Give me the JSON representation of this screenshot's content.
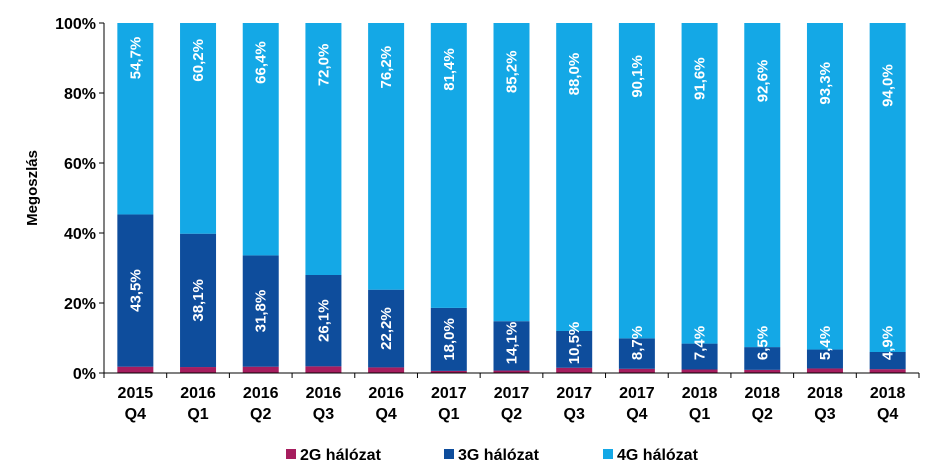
{
  "chart_data": {
    "type": "bar",
    "stacked": true,
    "ylabel": "Megoszlás",
    "ylim": [
      0,
      100
    ],
    "yticks": [
      "0%",
      "20%",
      "40%",
      "60%",
      "80%",
      "100%"
    ],
    "categories": [
      [
        "2015",
        "Q4"
      ],
      [
        "2016",
        "Q1"
      ],
      [
        "2016",
        "Q2"
      ],
      [
        "2016",
        "Q3"
      ],
      [
        "2016",
        "Q4"
      ],
      [
        "2017",
        "Q1"
      ],
      [
        "2017",
        "Q2"
      ],
      [
        "2017",
        "Q3"
      ],
      [
        "2017",
        "Q4"
      ],
      [
        "2018",
        "Q1"
      ],
      [
        "2018",
        "Q2"
      ],
      [
        "2018",
        "Q3"
      ],
      [
        "2018",
        "Q4"
      ]
    ],
    "series": [
      {
        "name": "2G hálózat",
        "color": "#A61D5E",
        "values": [
          1.8,
          1.7,
          1.8,
          1.9,
          1.6,
          0.6,
          0.7,
          1.5,
          1.2,
          1.0,
          0.9,
          1.3,
          1.1
        ]
      },
      {
        "name": "3G hálózat",
        "color": "#0E4D9C",
        "values": [
          43.5,
          38.1,
          31.8,
          26.1,
          22.2,
          18.0,
          14.1,
          10.5,
          8.7,
          7.4,
          6.5,
          5.4,
          4.9
        ],
        "labels": [
          "43,5%",
          "38,1%",
          "31,8%",
          "26,1%",
          "22,2%",
          "18,0%",
          "14,1%",
          "10,5%",
          "8,7%",
          "7,4%",
          "6,5%",
          "5,4%",
          "4,9%"
        ]
      },
      {
        "name": "4G hálózat",
        "color": "#14A8E6",
        "values": [
          54.7,
          60.2,
          66.4,
          72.0,
          76.2,
          81.4,
          85.2,
          88.0,
          90.1,
          91.6,
          92.6,
          93.3,
          94.0
        ],
        "labels": [
          "54,7%",
          "60,2%",
          "66,4%",
          "72,0%",
          "76,2%",
          "81,4%",
          "85,2%",
          "88,0%",
          "90,1%",
          "91,6%",
          "92,6%",
          "93,3%",
          "94,0%"
        ]
      }
    ],
    "grid": false,
    "legend": "bottom"
  }
}
